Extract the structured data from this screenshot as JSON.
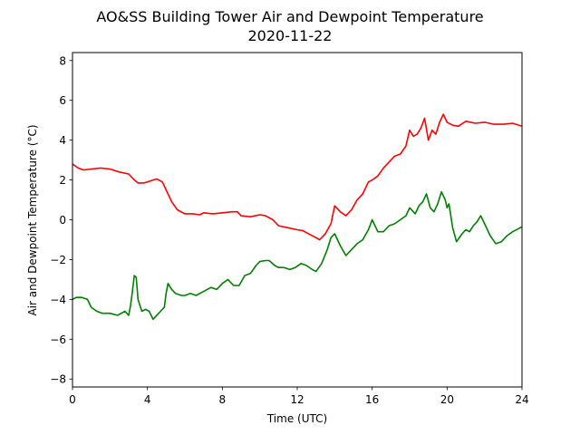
{
  "chart_data": {
    "type": "line",
    "title": "AO&SS Building Tower Air and Dewpoint Temperature",
    "subtitle": "2020-11-22",
    "xlabel": "Time (UTC)",
    "ylabel": "Air and Dewpoint Temperature (°C)",
    "xlim": [
      0,
      24
    ],
    "ylim": [
      -8.4,
      8.4
    ],
    "xticks": [
      0,
      4,
      8,
      12,
      16,
      20,
      24
    ],
    "yticks": [
      -8,
      -6,
      -4,
      -2,
      0,
      2,
      4,
      6,
      8
    ],
    "grid": false,
    "series": [
      {
        "color": "#ff0000",
        "x": [
          0,
          0.3,
          0.6,
          1.0,
          1.5,
          2.0,
          2.5,
          3.0,
          3.3,
          3.5,
          3.8,
          4.0,
          4.3,
          4.5,
          4.8,
          5.0,
          5.3,
          5.6,
          6.0,
          6.4,
          6.8,
          7.0,
          7.5,
          8.0,
          8.5,
          8.8,
          9.0,
          9.5,
          10.0,
          10.3,
          10.7,
          11.0,
          11.5,
          12.0,
          12.3,
          12.6,
          12.9,
          13.2,
          13.5,
          13.8,
          14.0,
          14.3,
          14.6,
          14.9,
          15.2,
          15.5,
          15.8,
          16.0,
          16.3,
          16.6,
          16.9,
          17.2,
          17.5,
          17.8,
          18.0,
          18.2,
          18.4,
          18.6,
          18.8,
          19.0,
          19.2,
          19.4,
          19.6,
          19.8,
          20.0,
          20.3,
          20.6,
          21.0,
          21.5,
          22.0,
          22.5,
          23.0,
          23.5,
          24.0
        ],
        "y": [
          2.8,
          2.6,
          2.5,
          2.55,
          2.6,
          2.55,
          2.4,
          2.3,
          2.0,
          1.85,
          1.85,
          1.9,
          2.0,
          2.05,
          1.9,
          1.5,
          0.9,
          0.5,
          0.3,
          0.3,
          0.25,
          0.35,
          0.3,
          0.35,
          0.4,
          0.4,
          0.2,
          0.15,
          0.25,
          0.2,
          0.0,
          -0.3,
          -0.4,
          -0.5,
          -0.55,
          -0.7,
          -0.85,
          -1.0,
          -0.7,
          -0.2,
          0.7,
          0.4,
          0.2,
          0.5,
          1.0,
          1.3,
          1.9,
          2.0,
          2.2,
          2.6,
          2.9,
          3.2,
          3.3,
          3.7,
          4.5,
          4.2,
          4.3,
          4.6,
          5.1,
          4.0,
          4.5,
          4.3,
          4.9,
          5.3,
          4.9,
          4.75,
          4.7,
          4.95,
          4.85,
          4.9,
          4.8,
          4.8,
          4.85,
          4.7
        ]
      },
      {
        "color": "#008000",
        "x": [
          0,
          0.2,
          0.5,
          0.8,
          1.0,
          1.3,
          1.6,
          2.0,
          2.4,
          2.8,
          3.0,
          3.1,
          3.2,
          3.3,
          3.4,
          3.5,
          3.7,
          3.9,
          4.1,
          4.3,
          4.5,
          4.7,
          4.9,
          5.0,
          5.1,
          5.3,
          5.5,
          5.8,
          6.0,
          6.3,
          6.6,
          7.0,
          7.4,
          7.7,
          8.0,
          8.3,
          8.6,
          8.9,
          9.2,
          9.5,
          9.8,
          10.0,
          10.3,
          10.5,
          10.8,
          11.0,
          11.3,
          11.6,
          11.9,
          12.2,
          12.5,
          12.8,
          13.0,
          13.3,
          13.6,
          13.8,
          14.0,
          14.3,
          14.6,
          14.9,
          15.2,
          15.5,
          15.8,
          16.0,
          16.3,
          16.6,
          16.9,
          17.2,
          17.5,
          17.8,
          18.0,
          18.3,
          18.5,
          18.7,
          18.9,
          19.1,
          19.3,
          19.5,
          19.7,
          19.9,
          20.0,
          20.1,
          20.3,
          20.5,
          20.8,
          21.0,
          21.2,
          21.4,
          21.6,
          21.8,
          22.0,
          22.3,
          22.6,
          22.9,
          23.2,
          23.5,
          23.8,
          24.0
        ],
        "y": [
          -4.0,
          -3.9,
          -3.9,
          -4.0,
          -4.4,
          -4.6,
          -4.7,
          -4.7,
          -4.8,
          -4.6,
          -4.8,
          -4.3,
          -3.6,
          -2.8,
          -2.9,
          -4.0,
          -4.6,
          -4.5,
          -4.6,
          -5.0,
          -4.8,
          -4.6,
          -4.4,
          -3.7,
          -3.2,
          -3.5,
          -3.7,
          -3.8,
          -3.8,
          -3.7,
          -3.8,
          -3.6,
          -3.4,
          -3.5,
          -3.2,
          -3.0,
          -3.3,
          -3.3,
          -2.8,
          -2.7,
          -2.3,
          -2.1,
          -2.05,
          -2.05,
          -2.3,
          -2.4,
          -2.4,
          -2.5,
          -2.4,
          -2.2,
          -2.3,
          -2.5,
          -2.6,
          -2.2,
          -1.5,
          -0.9,
          -0.7,
          -1.3,
          -1.8,
          -1.5,
          -1.2,
          -1.0,
          -0.5,
          0.0,
          -0.6,
          -0.6,
          -0.3,
          -0.2,
          0.0,
          0.2,
          0.6,
          0.3,
          0.7,
          0.9,
          1.3,
          0.6,
          0.4,
          0.8,
          1.4,
          1.0,
          0.6,
          0.8,
          -0.4,
          -1.1,
          -0.7,
          -0.5,
          -0.6,
          -0.3,
          -0.1,
          0.2,
          -0.2,
          -0.8,
          -1.2,
          -1.1,
          -0.8,
          -0.6,
          -0.45,
          -0.35
        ]
      }
    ]
  }
}
